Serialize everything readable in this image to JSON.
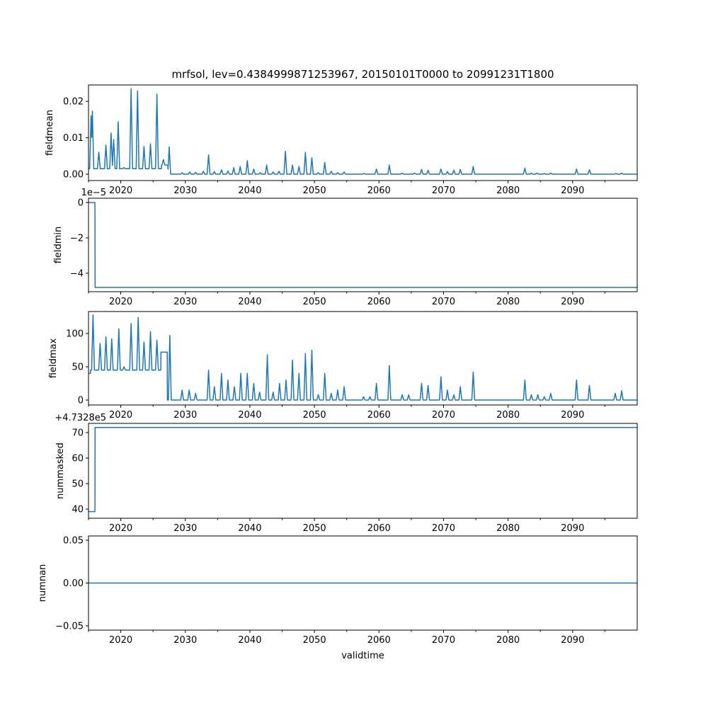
{
  "chart_data": {
    "type": "line",
    "title": "mrfsol, lev=0.4384999871253967, 20150101T0000 to 20991231T1800",
    "xlabel": "validtime",
    "xlim": [
      2015,
      2100
    ],
    "xticks": [
      2020,
      2030,
      2040,
      2050,
      2060,
      2070,
      2080,
      2090
    ],
    "xticks_minor": [
      2015,
      2025,
      2035,
      2045,
      2055,
      2065,
      2075,
      2085,
      2095
    ],
    "color": "#1f77b4",
    "panels": [
      {
        "ylabel": "fieldmean",
        "ylim": [
          -0.00175,
          0.0245
        ],
        "yticks": [
          0.0,
          0.01,
          0.02
        ],
        "ytick_labels": [
          "0.00",
          "0.01",
          "0.02"
        ],
        "offset_text": "",
        "baseline": [
          [
            2015,
            2026.3,
            0.0015
          ],
          [
            2026.3,
            2027.3,
            0.0025
          ],
          [
            2027.3,
            2100,
            0
          ]
        ],
        "peaks": [
          [
            2015.4,
            0.016
          ],
          [
            2015.6,
            0.0173
          ],
          [
            2016.6,
            0.006
          ],
          [
            2017.7,
            0.008
          ],
          [
            2018.5,
            0.0113
          ],
          [
            2018.9,
            0.0095
          ],
          [
            2019.6,
            0.0144
          ],
          [
            2020.5,
            0.0018
          ],
          [
            2021.6,
            0.0235
          ],
          [
            2022.6,
            0.0229
          ],
          [
            2023.6,
            0.0076
          ],
          [
            2024.6,
            0.0083
          ],
          [
            2025.6,
            0.022
          ],
          [
            2026.6,
            0.004
          ],
          [
            2027.5,
            0.0075
          ],
          [
            2029.5,
            0.0004
          ],
          [
            2030.7,
            0.0006
          ],
          [
            2031.6,
            0.0005
          ],
          [
            2032.8,
            0.0008
          ],
          [
            2033.6,
            0.0053
          ],
          [
            2034.5,
            0.0007
          ],
          [
            2035.6,
            0.0012
          ],
          [
            2036.6,
            0.0009
          ],
          [
            2037.5,
            0.0018
          ],
          [
            2038.5,
            0.0021
          ],
          [
            2039.6,
            0.0037
          ],
          [
            2040.6,
            0.0014
          ],
          [
            2041.6,
            0.0004
          ],
          [
            2042.6,
            0.0025
          ],
          [
            2043.6,
            0.0006
          ],
          [
            2044.5,
            0.0008
          ],
          [
            2045.5,
            0.0063
          ],
          [
            2046.6,
            0.0025
          ],
          [
            2047.6,
            0.0021
          ],
          [
            2048.6,
            0.006
          ],
          [
            2049.6,
            0.0045
          ],
          [
            2050.6,
            0.0004
          ],
          [
            2051.6,
            0.0032
          ],
          [
            2052.6,
            0.0008
          ],
          [
            2053.6,
            0.0004
          ],
          [
            2054.6,
            0.0006
          ],
          [
            2057.7,
            0.0002
          ],
          [
            2059.6,
            0.0014
          ],
          [
            2061.6,
            0.0025
          ],
          [
            2063.6,
            0.0003
          ],
          [
            2065.5,
            0.0003
          ],
          [
            2066.6,
            0.0013
          ],
          [
            2067.6,
            0.0011
          ],
          [
            2069.6,
            0.0014
          ],
          [
            2070.6,
            0.0007
          ],
          [
            2071.6,
            0.0011
          ],
          [
            2072.6,
            0.0013
          ],
          [
            2074.6,
            0.0021
          ],
          [
            2082.6,
            0.0017
          ],
          [
            2083.6,
            0.0003
          ],
          [
            2084.5,
            0.0003
          ],
          [
            2085.6,
            0.0002
          ],
          [
            2086.6,
            0.0003
          ],
          [
            2090.6,
            0.0014
          ],
          [
            2092.6,
            0.0012
          ],
          [
            2096.7,
            0.0002
          ],
          [
            2097.6,
            0.0003
          ]
        ]
      },
      {
        "ylabel": "fieldmin",
        "ylim": [
          -5.04,
          0.24
        ],
        "yticks": [
          0,
          -2,
          -4
        ],
        "ytick_labels": [
          "0",
          "−2",
          "−4"
        ],
        "offset_text": "1e−5",
        "baseline": [
          [
            2015,
            2016,
            0
          ],
          [
            2016,
            2100,
            -4.8
          ]
        ],
        "peaks": []
      },
      {
        "ylabel": "fieldmax",
        "ylim": [
          -7.4,
          133
        ],
        "yticks": [
          0,
          50,
          100
        ],
        "ytick_labels": [
          "0",
          "50",
          "100"
        ],
        "offset_text": "",
        "baseline": [
          [
            2015,
            2015.3,
            40
          ],
          [
            2015.3,
            2026.2,
            45
          ],
          [
            2026.2,
            2027.2,
            72
          ],
          [
            2027.2,
            2100,
            0
          ]
        ],
        "peaks": [
          [
            2015.7,
            128
          ],
          [
            2016.8,
            85
          ],
          [
            2017.7,
            95
          ],
          [
            2018.6,
            92
          ],
          [
            2019.7,
            107
          ],
          [
            2020.5,
            50
          ],
          [
            2021.6,
            115
          ],
          [
            2022.7,
            124
          ],
          [
            2023.6,
            87
          ],
          [
            2024.6,
            103
          ],
          [
            2025.6,
            90
          ],
          [
            2027.6,
            97
          ],
          [
            2029.5,
            15
          ],
          [
            2030.6,
            15
          ],
          [
            2031.6,
            10
          ],
          [
            2033.6,
            45
          ],
          [
            2034.5,
            20
          ],
          [
            2035.6,
            40
          ],
          [
            2036.6,
            30
          ],
          [
            2037.6,
            20
          ],
          [
            2038.6,
            40
          ],
          [
            2039.6,
            40
          ],
          [
            2040.6,
            25
          ],
          [
            2041.5,
            12
          ],
          [
            2042.7,
            68
          ],
          [
            2043.6,
            12
          ],
          [
            2044.6,
            25
          ],
          [
            2045.6,
            30
          ],
          [
            2046.6,
            60
          ],
          [
            2047.6,
            40
          ],
          [
            2048.6,
            70
          ],
          [
            2049.6,
            75
          ],
          [
            2050.6,
            8
          ],
          [
            2051.6,
            40
          ],
          [
            2052.6,
            10
          ],
          [
            2053.6,
            15
          ],
          [
            2054.6,
            20
          ],
          [
            2057.6,
            5
          ],
          [
            2058.6,
            5
          ],
          [
            2059.6,
            25
          ],
          [
            2061.6,
            52
          ],
          [
            2063.6,
            8
          ],
          [
            2064.6,
            8
          ],
          [
            2066.6,
            25
          ],
          [
            2067.6,
            22
          ],
          [
            2069.6,
            35
          ],
          [
            2070.6,
            15
          ],
          [
            2071.6,
            8
          ],
          [
            2072.6,
            20
          ],
          [
            2074.6,
            42
          ],
          [
            2082.6,
            30
          ],
          [
            2083.6,
            8
          ],
          [
            2084.6,
            8
          ],
          [
            2085.6,
            5
          ],
          [
            2086.6,
            10
          ],
          [
            2090.6,
            30
          ],
          [
            2092.6,
            22
          ],
          [
            2096.6,
            10
          ],
          [
            2097.6,
            14
          ]
        ]
      },
      {
        "ylabel": "nummasked",
        "ylim": [
          36.4,
          73.6
        ],
        "yticks": [
          40,
          50,
          60,
          70
        ],
        "ytick_labels": [
          "40",
          "50",
          "60",
          "70"
        ],
        "offset_text": "+4.7328e5",
        "baseline": [
          [
            2015,
            2016,
            39
          ],
          [
            2016,
            2100,
            72
          ]
        ],
        "peaks": []
      },
      {
        "ylabel": "numnan",
        "ylim": [
          -0.055,
          0.055
        ],
        "yticks": [
          -0.05,
          0.0,
          0.05
        ],
        "ytick_labels": [
          "−0.05",
          "0.00",
          "0.05"
        ],
        "offset_text": "",
        "baseline": [
          [
            2015,
            2100,
            0
          ]
        ],
        "peaks": []
      }
    ]
  }
}
